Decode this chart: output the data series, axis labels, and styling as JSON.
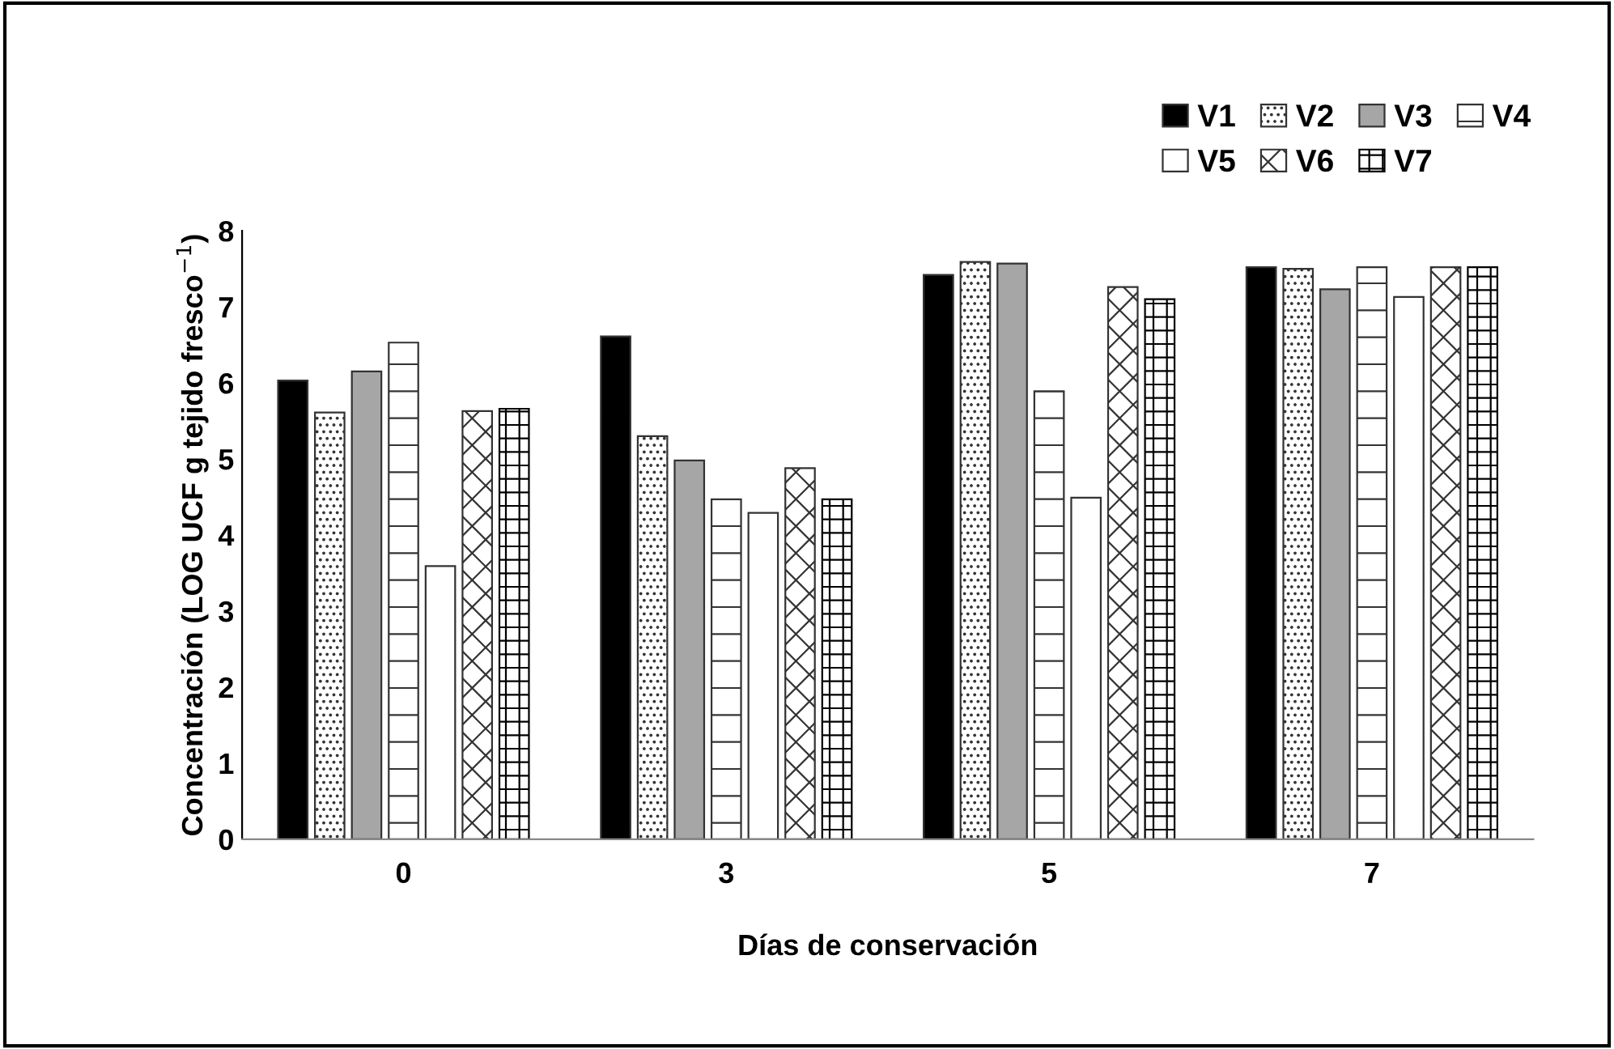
{
  "chart_data": {
    "type": "bar",
    "xlabel": "Días de conservación",
    "ylabel": "Concentración (LOG UCF g tejido fresco$^{−1}$)",
    "categories": [
      "0",
      "3",
      "5",
      "7"
    ],
    "series": [
      {
        "name": "V1",
        "color": "#000000",
        "values": [
          6.03,
          6.61,
          7.42,
          7.52
        ]
      },
      {
        "name": "V2",
        "color": "#333333",
        "values": [
          5.61,
          5.3,
          7.59,
          7.5
        ]
      },
      {
        "name": "V3",
        "color": "#a6a6a6",
        "values": [
          6.15,
          4.98,
          7.57,
          7.23
        ]
      },
      {
        "name": "V4",
        "color": "#333333",
        "values": [
          6.53,
          4.47,
          5.89,
          7.52
        ]
      },
      {
        "name": "V5",
        "color": "#ffffff",
        "values": [
          3.59,
          4.29,
          4.49,
          7.13
        ]
      },
      {
        "name": "V6",
        "color": "#333333",
        "values": [
          5.63,
          4.88,
          7.26,
          7.52
        ]
      },
      {
        "name": "V7",
        "color": "#000000",
        "values": [
          5.66,
          4.47,
          7.1,
          7.52
        ]
      }
    ],
    "ylim": [
      0,
      8
    ],
    "yticks": [
      0,
      1,
      2,
      3,
      4,
      5,
      6,
      7,
      8
    ],
    "grid": false,
    "legend": "top right"
  }
}
